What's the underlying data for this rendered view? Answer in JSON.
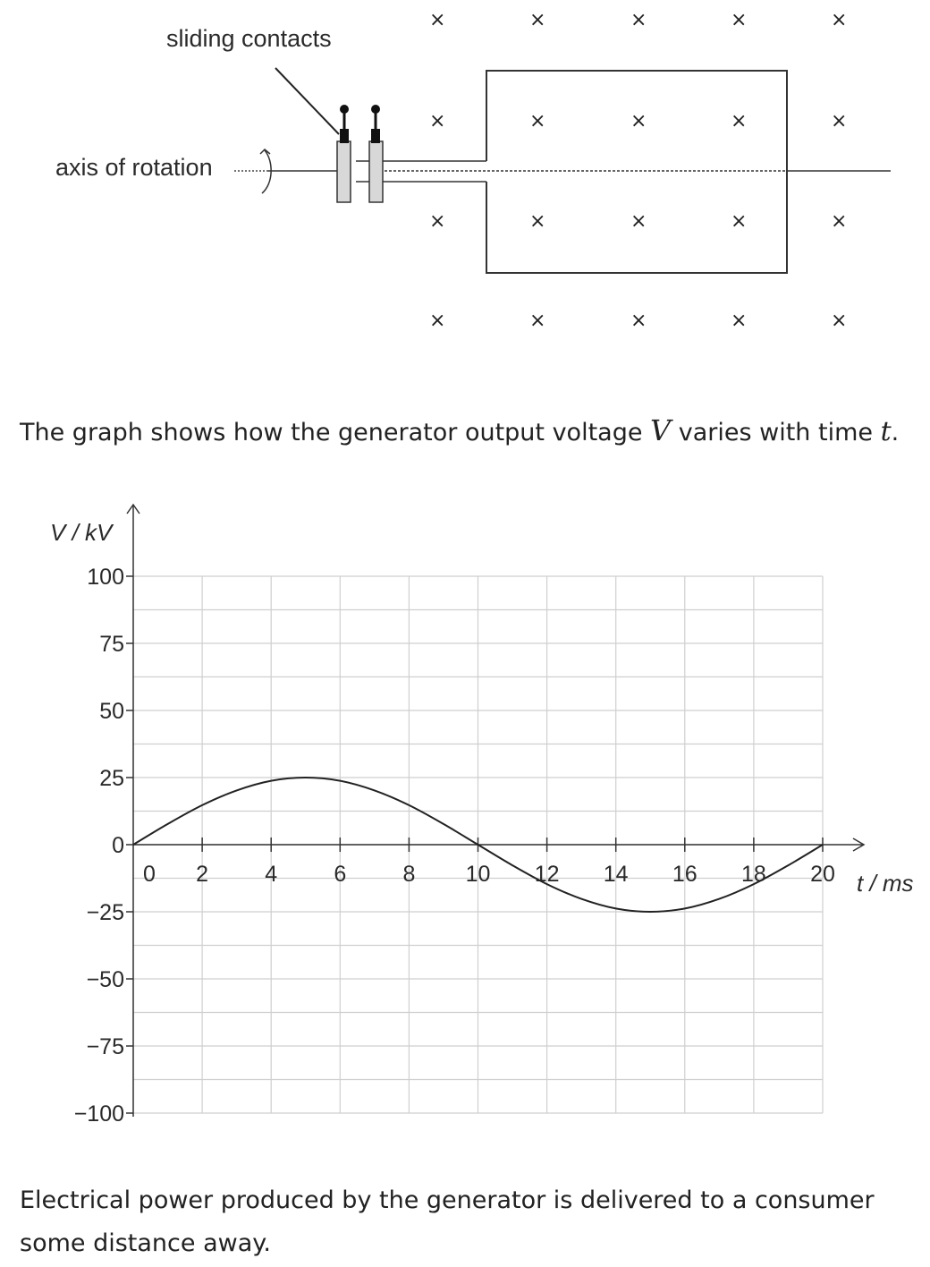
{
  "diagram": {
    "sliding_contacts_label": "sliding contacts",
    "axis_label": "axis of rotation",
    "field_symbol": "×"
  },
  "intro_text": {
    "before": "The graph shows how the generator output voltage ",
    "var_v": "V",
    "middle": " varies with time ",
    "var_t": "t",
    "after": "."
  },
  "chart_data": {
    "type": "line",
    "xlabel": "t / ms",
    "ylabel": "V / kV",
    "xlim": [
      0,
      20
    ],
    "ylim": [
      -100,
      100
    ],
    "x_ticks": [
      0,
      2,
      4,
      6,
      8,
      10,
      12,
      14,
      16,
      18,
      20
    ],
    "y_ticks": [
      100,
      75,
      50,
      25,
      0,
      -25,
      -50,
      -75,
      -100
    ],
    "grid": true,
    "series": [
      {
        "amplitude_kV": 25,
        "period_ms": 20,
        "x": [
          0,
          1,
          2,
          3,
          4,
          5,
          6,
          7,
          8,
          9,
          10,
          11,
          12,
          13,
          14,
          15,
          16,
          17,
          18,
          19,
          20
        ],
        "y": [
          0,
          7.7,
          14.7,
          20.2,
          23.8,
          25,
          23.8,
          20.2,
          14.7,
          7.7,
          0,
          -7.7,
          -14.7,
          -20.2,
          -23.8,
          -25,
          -23.8,
          -20.2,
          -14.7,
          -7.7,
          0
        ]
      }
    ]
  },
  "closing_text": "Electrical power produced by the generator is delivered to a consumer some distance away."
}
